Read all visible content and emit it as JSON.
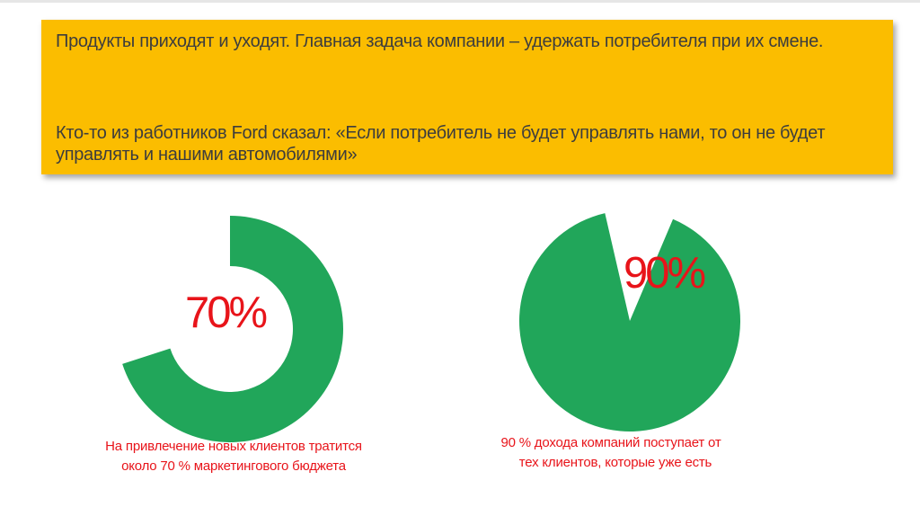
{
  "banner": {
    "paragraph1": "Продукты приходят и уходят. Главная задача компании – удержать потребителя при их смене.",
    "paragraph2": "Кто-то из работников Ford сказал: «Если потребитель не будет управлять нами, то он не будет управлять и нашими автомобилями»"
  },
  "charts": {
    "left": {
      "percent": 70,
      "label": "70%",
      "caption_line1": "На привлечение новых клиентов тратится",
      "caption_line2": "около 70 % маркетингового бюджета"
    },
    "right": {
      "percent": 90,
      "label": "90%",
      "caption_line1": "90 % дохода компаний поступает от",
      "caption_line2": "тех клиентов, которые уже есть"
    }
  },
  "colors": {
    "banner": "#fbbd00",
    "chart": "#21a65a",
    "accent_text": "#e8141a"
  }
}
